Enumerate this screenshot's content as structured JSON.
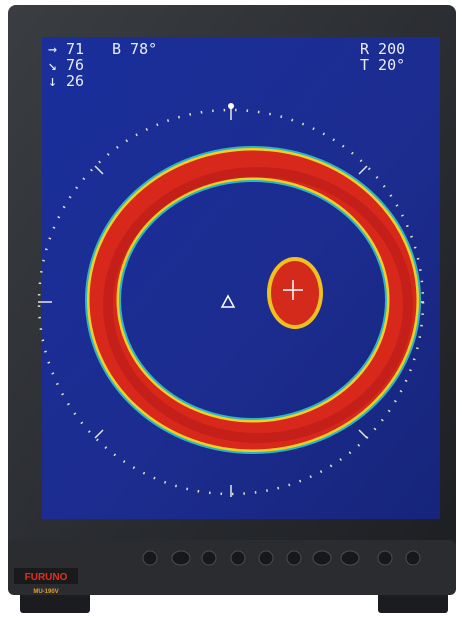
{
  "screen": {
    "readouts_left": [
      {
        "icon": "→",
        "value": "71"
      },
      {
        "icon": "↘",
        "value": "76"
      },
      {
        "icon": "↓",
        "value": "26"
      }
    ],
    "bearing": "B 78°",
    "range": "R 200",
    "tilt": "T 20°"
  },
  "device": {
    "brand": "FURUNO",
    "model": "MU-190V"
  }
}
